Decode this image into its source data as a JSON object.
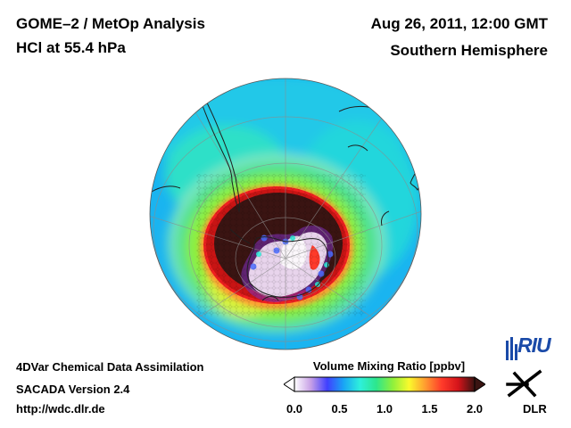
{
  "header": {
    "title_line1": "GOME–2 / MetOp Analysis",
    "title_line2": "HCl at 55.4 hPa",
    "date": "Aug 26, 2011, 12:00 GMT",
    "hemisphere": "Southern Hemisphere"
  },
  "footer": {
    "line1": "4DVar Chemical Data Assimilation",
    "line2": "SACADA Version 2.4",
    "line3": "http://wdc.dlr.de"
  },
  "colorbar": {
    "title": "Volume Mixing Ratio [ppbv]",
    "ticks": [
      "0.0",
      "0.5",
      "1.0",
      "1.5",
      "2.0"
    ],
    "tick_values": [
      0.0,
      0.5,
      1.0,
      1.5,
      2.0
    ],
    "range": [
      0.0,
      2.0
    ],
    "colors": [
      "#ffffff",
      "#c7a0e6",
      "#4040ff",
      "#19a5f5",
      "#2ef0dc",
      "#2de68c",
      "#8ff03c",
      "#fafa2c",
      "#ff9a30",
      "#ff3a2a",
      "#d4141a",
      "#3a1412"
    ]
  },
  "logos": {
    "riu": "RIU",
    "dlr": "DLR"
  }
}
